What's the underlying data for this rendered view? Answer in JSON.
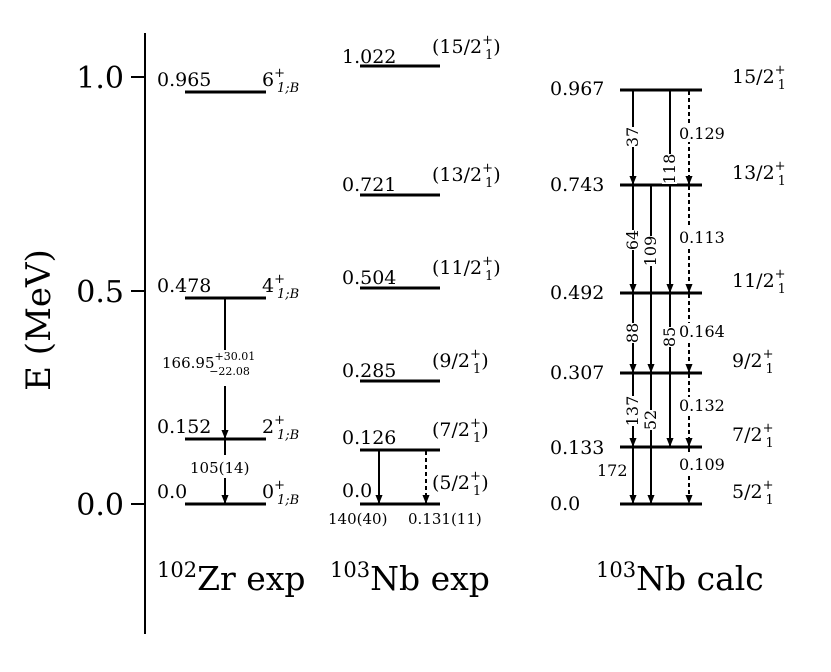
{
  "axis": {
    "ylabel": "E (MeV)",
    "ticks": [
      {
        "value": 1.0,
        "label": "1.0"
      },
      {
        "value": 0.5,
        "label": "0.5"
      },
      {
        "value": 0.0,
        "label": "0.0"
      }
    ]
  },
  "columns": {
    "zr_exp": {
      "title_mass": "102",
      "title_rest": "Zr exp",
      "levels": [
        {
          "id": "zr0",
          "energy_label": "0.0",
          "energy": 0.0,
          "jp": "0",
          "jp_sup": "+",
          "jp_sub": "1;B"
        },
        {
          "id": "zr2",
          "energy_label": "0.152",
          "energy": 0.152,
          "jp": "2",
          "jp_sup": "+",
          "jp_sub": "1;B"
        },
        {
          "id": "zr4",
          "energy_label": "0.478",
          "energy": 0.478,
          "jp": "4",
          "jp_sup": "+",
          "jp_sub": "1;B"
        },
        {
          "id": "zr6",
          "energy_label": "0.965",
          "energy": 0.965,
          "jp": "6",
          "jp_sup": "+",
          "jp_sub": "1;B"
        }
      ],
      "transitions": {
        "t42_base": "166.95",
        "t42_sup": "+30.01",
        "t42_sub": "−22.08",
        "t20": "105(14)"
      }
    },
    "nb_exp": {
      "title_mass": "103",
      "title_rest": "Nb exp",
      "levels": [
        {
          "id": "ne5",
          "energy_label": "0.0",
          "energy": 0.0,
          "jp_open": "(5/2",
          "jp_sup": "+",
          "jp_sub": "1",
          "jp_close": ")"
        },
        {
          "id": "ne7",
          "energy_label": "0.126",
          "energy": 0.126,
          "jp_open": "(7/2",
          "jp_sup": "+",
          "jp_sub": "1",
          "jp_close": ")"
        },
        {
          "id": "ne9",
          "energy_label": "0.285",
          "energy": 0.285,
          "jp_open": "(9/2",
          "jp_sup": "+",
          "jp_sub": "1",
          "jp_close": ")"
        },
        {
          "id": "ne11",
          "energy_label": "0.504",
          "energy": 0.504,
          "jp_open": "(11/2",
          "jp_sup": "+",
          "jp_sub": "1",
          "jp_close": ")"
        },
        {
          "id": "ne13",
          "energy_label": "0.721",
          "energy": 0.721,
          "jp_open": "(13/2",
          "jp_sup": "+",
          "jp_sub": "1",
          "jp_close": ")"
        },
        {
          "id": "ne15",
          "energy_label": "1.022",
          "energy": 1.022,
          "jp_open": "(15/2",
          "jp_sup": "+",
          "jp_sub": "1",
          "jp_close": ")"
        }
      ],
      "transitions": {
        "e2_75": "140(40)",
        "m1_75": "0.131(11)"
      }
    },
    "nb_calc": {
      "title_mass": "103",
      "title_rest": "Nb calc",
      "levels": [
        {
          "id": "nc5",
          "energy_label": "0.0",
          "energy": 0.0,
          "jp": "5/2",
          "jp_sup": "+",
          "jp_sub": "1"
        },
        {
          "id": "nc7",
          "energy_label": "0.133",
          "energy": 0.133,
          "jp": "7/2",
          "jp_sup": "+",
          "jp_sub": "1"
        },
        {
          "id": "nc9",
          "energy_label": "0.307",
          "energy": 0.307,
          "jp": "9/2",
          "jp_sup": "+",
          "jp_sub": "1"
        },
        {
          "id": "nc11",
          "energy_label": "0.492",
          "energy": 0.492,
          "jp": "11/2",
          "jp_sup": "+",
          "jp_sub": "1"
        },
        {
          "id": "nc13",
          "energy_label": "0.743",
          "energy": 0.743,
          "jp": "13/2",
          "jp_sup": "+",
          "jp_sub": "1"
        },
        {
          "id": "nc15",
          "energy_label": "0.967",
          "energy": 0.967,
          "jp": "15/2",
          "jp_sup": "+",
          "jp_sub": "1"
        }
      ],
      "transitions": {
        "e2_15_13": "37",
        "e2_15_11": "118",
        "m1_15_13": "0.129",
        "e2_13_11": "64",
        "e2_13_9": "109",
        "m1_13_11": "0.113",
        "e2_11_9": "88",
        "e2_11_7": "85",
        "m1_11_9": "0.164",
        "e2_9_7": "137",
        "e2_9_5": "52",
        "m1_9_7": "0.132",
        "e2_7_5": "172",
        "m1_7_5": "0.109"
      }
    }
  }
}
